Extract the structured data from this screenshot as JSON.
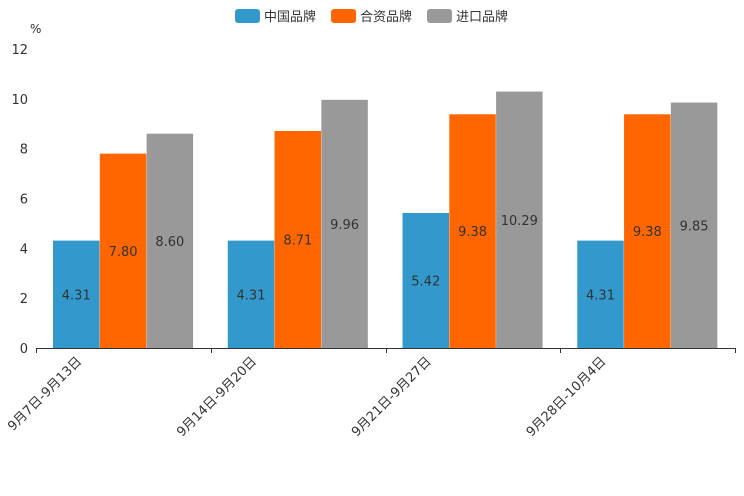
{
  "chart_data": {
    "type": "bar",
    "title": "",
    "xlabel": "",
    "ylabel": "%",
    "ylim": [
      0,
      12
    ],
    "yticks": [
      0,
      2,
      4,
      6,
      8,
      10,
      12
    ],
    "grid": false,
    "legend_position": "top-center",
    "categories": [
      "9月7日-9月13日",
      "9月14日-9月20日",
      "9月21日-9月27日",
      "9月28日-10月4日"
    ],
    "series": [
      {
        "name": "中国品牌",
        "color": "#3399cc",
        "values": [
          4.31,
          4.31,
          5.42,
          4.31
        ],
        "labels": [
          "4.31",
          "4.31",
          "5.42",
          "4.31"
        ]
      },
      {
        "name": "合资品牌",
        "color": "#ff6600",
        "values": [
          7.8,
          8.71,
          9.38,
          9.38
        ],
        "labels": [
          "7.80",
          "8.71",
          "9.38",
          "9.38"
        ]
      },
      {
        "name": "进口品牌",
        "color": "#999999",
        "values": [
          8.6,
          9.96,
          10.29,
          9.85
        ],
        "labels": [
          "8.60",
          "9.96",
          "10.29",
          "9.85"
        ]
      }
    ]
  }
}
